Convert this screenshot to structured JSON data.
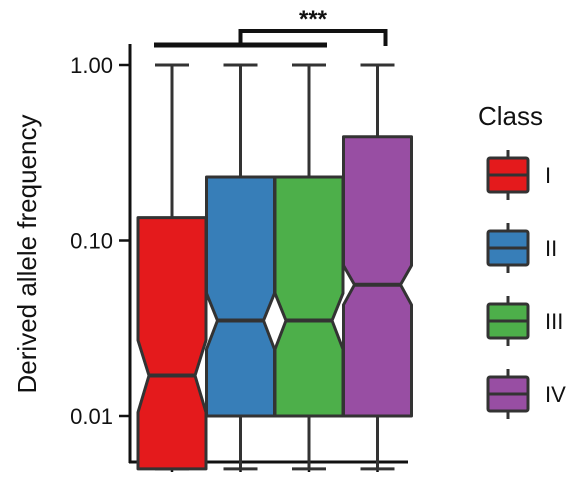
{
  "chart_data": {
    "type": "box",
    "subtype": "notched boxplot",
    "ylabel": "Derived allele frequency",
    "yscale": "log",
    "ylim": [
      0.0045,
      1.25
    ],
    "yticks": [
      {
        "value": 1.0,
        "label": "1.00"
      },
      {
        "value": 0.1,
        "label": "0.10"
      },
      {
        "value": 0.01,
        "label": "0.01"
      }
    ],
    "categories": [
      "I",
      "II",
      "III",
      "IV"
    ],
    "series": [
      {
        "name": "I",
        "color": "#E41A1C",
        "whisker_low": 0.005,
        "q1": 0.005,
        "median": 0.017,
        "q3": 0.135,
        "whisker_high": 1.0,
        "notch_low": 0.0105,
        "notch_high": 0.027
      },
      {
        "name": "II",
        "color": "#377EB8",
        "whisker_low": 0.005,
        "q1": 0.01,
        "median": 0.035,
        "q3": 0.23,
        "whisker_high": 1.0,
        "notch_low": 0.024,
        "notch_high": 0.05
      },
      {
        "name": "III",
        "color": "#4DAF4A",
        "whisker_low": 0.005,
        "q1": 0.01,
        "median": 0.035,
        "q3": 0.23,
        "whisker_high": 1.0,
        "notch_low": 0.024,
        "notch_high": 0.05
      },
      {
        "name": "IV",
        "color": "#984EA3",
        "whisker_low": 0.005,
        "q1": 0.01,
        "median": 0.056,
        "q3": 0.39,
        "whisker_high": 1.0,
        "notch_low": 0.043,
        "notch_high": 0.072
      }
    ],
    "significance": {
      "label": "***",
      "groups": [
        [
          "I",
          "III"
        ],
        [
          "IV"
        ]
      ]
    },
    "legend": {
      "title": "Class",
      "position": "right",
      "entries": [
        "I",
        "II",
        "III",
        "IV"
      ]
    },
    "grid": false
  }
}
